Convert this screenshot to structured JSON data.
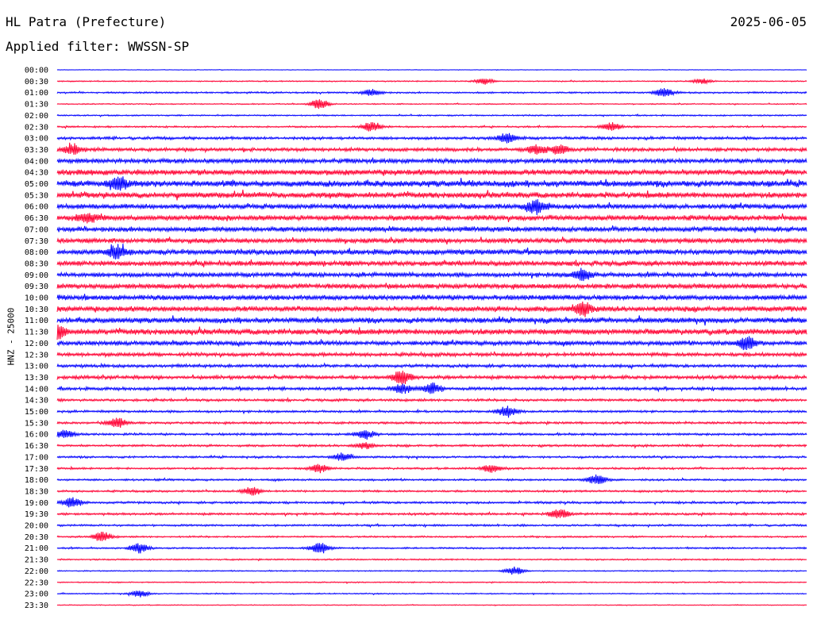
{
  "header": {
    "station": "HL Patra (Prefecture)",
    "date": "2025-06-05",
    "filter": "Applied filter: WWSSN-SP"
  },
  "axis": {
    "ylabel": "HNZ - 25000"
  },
  "colors": {
    "odd_row": "#0000ff",
    "even_row": "#ff0033",
    "background": "#ffffff"
  },
  "chart_data": {
    "type": "line",
    "title": "HL Patra (Prefecture)",
    "subtitle": "Applied filter: WWSSN-SP",
    "ylabel": "HNZ - 25000",
    "xlabel": "",
    "rows": [
      "00:00",
      "00:30",
      "01:00",
      "01:30",
      "02:00",
      "02:30",
      "03:00",
      "03:30",
      "04:00",
      "04:30",
      "05:00",
      "05:30",
      "06:00",
      "06:30",
      "07:00",
      "07:30",
      "08:00",
      "08:30",
      "09:00",
      "09:30",
      "10:00",
      "10:30",
      "11:00",
      "11:30",
      "12:00",
      "12:30",
      "13:00",
      "13:30",
      "14:00",
      "14:30",
      "15:00",
      "15:30",
      "16:00",
      "16:30",
      "17:00",
      "17:30",
      "18:00",
      "18:30",
      "19:00",
      "19:30",
      "20:00",
      "20:30",
      "21:00",
      "21:30",
      "22:00",
      "22:30",
      "23:00",
      "23:30"
    ],
    "noise_level": [
      0.4,
      0.8,
      1.2,
      0.8,
      1.0,
      1.2,
      2.0,
      2.5,
      3.2,
      4.0,
      4.5,
      4.0,
      3.5,
      3.8,
      3.6,
      3.4,
      3.8,
      3.6,
      3.2,
      3.5,
      3.6,
      3.8,
      3.8,
      4.0,
      3.2,
      2.6,
      2.2,
      2.5,
      2.2,
      1.8,
      1.6,
      1.6,
      1.6,
      1.6,
      1.4,
      1.4,
      1.4,
      1.4,
      1.6,
      1.6,
      1.4,
      1.2,
      1.2,
      1.0,
      0.8,
      0.8,
      0.8,
      0.6
    ],
    "events": [
      {
        "row": "00:30",
        "t": 0.57,
        "amp": 4
      },
      {
        "row": "00:30",
        "t": 0.86,
        "amp": 3
      },
      {
        "row": "01:00",
        "t": 0.42,
        "amp": 4
      },
      {
        "row": "01:00",
        "t": 0.81,
        "amp": 5
      },
      {
        "row": "01:30",
        "t": 0.35,
        "amp": 6
      },
      {
        "row": "02:30",
        "t": 0.42,
        "amp": 6
      },
      {
        "row": "02:30",
        "t": 0.74,
        "amp": 5
      },
      {
        "row": "03:00",
        "t": 0.6,
        "amp": 6
      },
      {
        "row": "03:30",
        "t": 0.02,
        "amp": 6
      },
      {
        "row": "03:30",
        "t": 0.64,
        "amp": 6
      },
      {
        "row": "03:30",
        "t": 0.67,
        "amp": 5
      },
      {
        "row": "05:00",
        "t": 0.08,
        "amp": 8
      },
      {
        "row": "06:00",
        "t": 0.64,
        "amp": 9
      },
      {
        "row": "06:30",
        "t": 0.04,
        "amp": 6
      },
      {
        "row": "08:00",
        "t": 0.08,
        "amp": 8
      },
      {
        "row": "09:00",
        "t": 0.7,
        "amp": 7
      },
      {
        "row": "10:30",
        "t": 0.7,
        "amp": 8
      },
      {
        "row": "11:30",
        "t": 0.0,
        "amp": 7
      },
      {
        "row": "12:00",
        "t": 0.92,
        "amp": 8
      },
      {
        "row": "13:30",
        "t": 0.46,
        "amp": 8
      },
      {
        "row": "14:00",
        "t": 0.46,
        "amp": 6
      },
      {
        "row": "14:00",
        "t": 0.5,
        "amp": 7
      },
      {
        "row": "15:00",
        "t": 0.6,
        "amp": 7
      },
      {
        "row": "15:30",
        "t": 0.08,
        "amp": 6
      },
      {
        "row": "16:00",
        "t": 0.01,
        "amp": 5
      },
      {
        "row": "16:00",
        "t": 0.41,
        "amp": 6
      },
      {
        "row": "16:30",
        "t": 0.41,
        "amp": 4
      },
      {
        "row": "17:00",
        "t": 0.38,
        "amp": 5
      },
      {
        "row": "17:30",
        "t": 0.35,
        "amp": 5
      },
      {
        "row": "17:30",
        "t": 0.58,
        "amp": 5
      },
      {
        "row": "18:00",
        "t": 0.72,
        "amp": 6
      },
      {
        "row": "18:30",
        "t": 0.26,
        "amp": 5
      },
      {
        "row": "19:00",
        "t": 0.02,
        "amp": 6
      },
      {
        "row": "19:30",
        "t": 0.67,
        "amp": 6
      },
      {
        "row": "20:30",
        "t": 0.06,
        "amp": 6
      },
      {
        "row": "21:00",
        "t": 0.11,
        "amp": 6
      },
      {
        "row": "21:00",
        "t": 0.35,
        "amp": 7
      },
      {
        "row": "22:00",
        "t": 0.61,
        "amp": 5
      },
      {
        "row": "23:00",
        "t": 0.11,
        "amp": 4
      }
    ],
    "grid": false,
    "legend": "none"
  }
}
